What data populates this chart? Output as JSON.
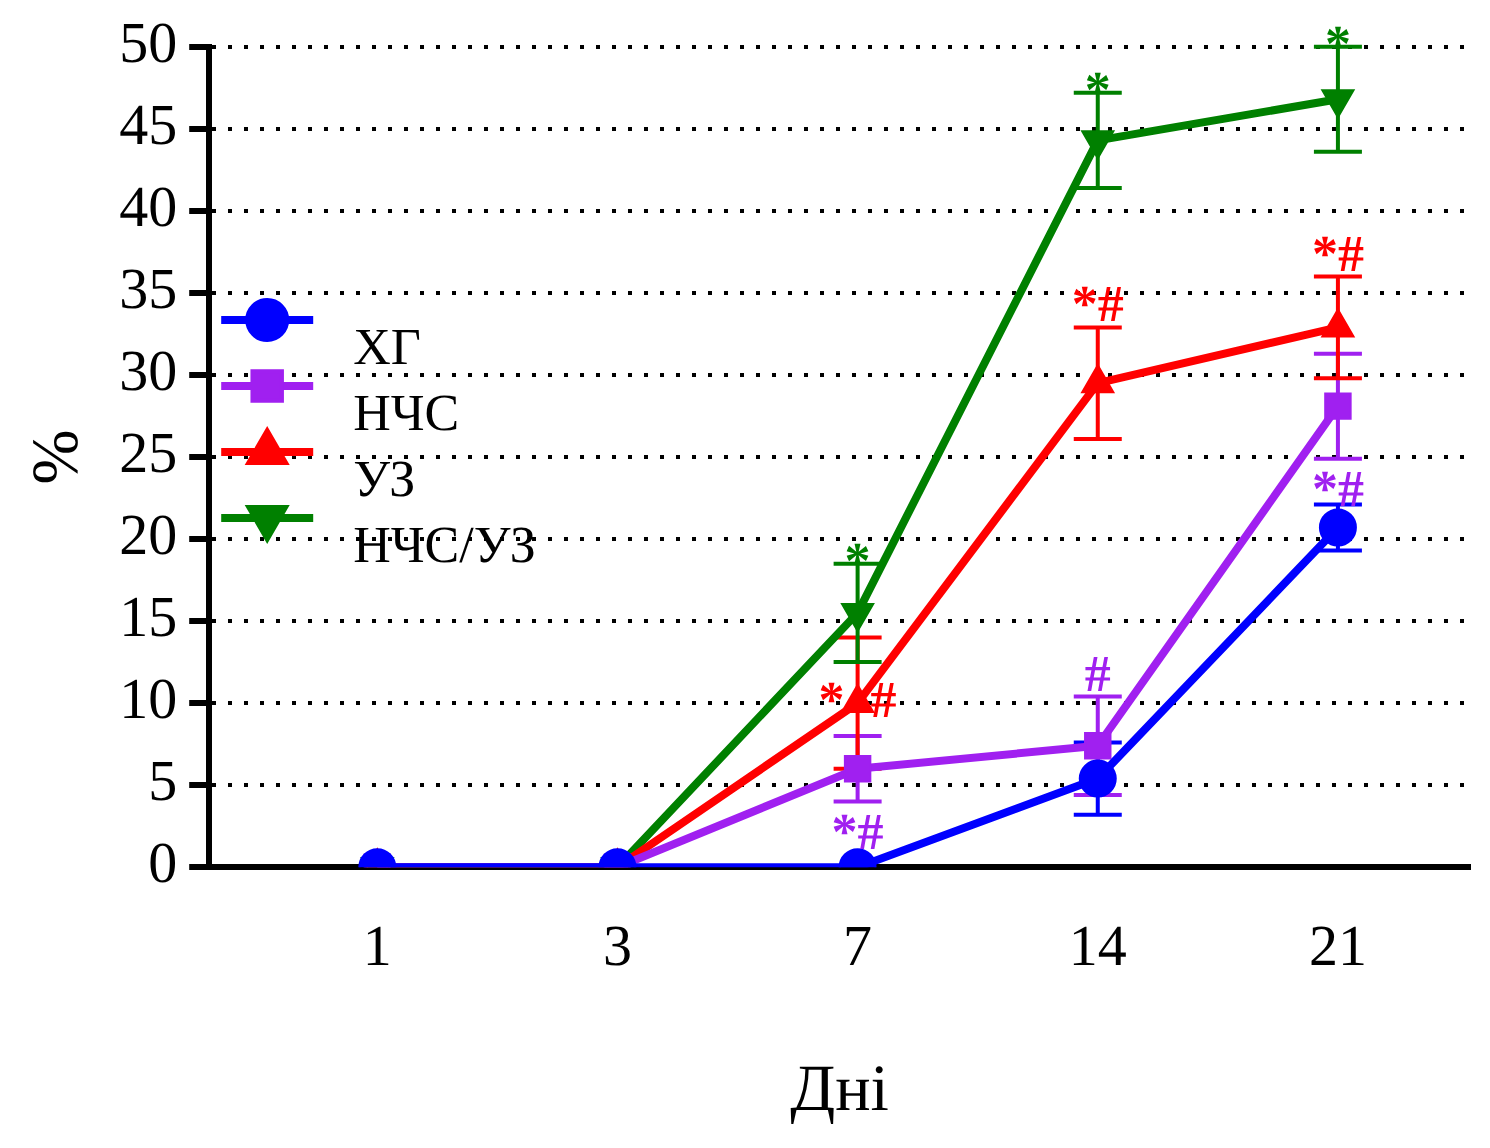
{
  "chart_data": {
    "type": "line",
    "xlabel": "Дні",
    "ylabel": "%",
    "categories": [
      "1",
      "3",
      "7",
      "14",
      "21"
    ],
    "ylim": [
      0,
      50
    ],
    "yticks": [
      0,
      5,
      10,
      15,
      20,
      25,
      30,
      35,
      40,
      45,
      50
    ],
    "grid": "y",
    "legend": "left",
    "line_style": "solid",
    "series": [
      {
        "name": "ХГ",
        "color": "#0000ff",
        "marker": "circle",
        "values": [
          0,
          0,
          0,
          5.4,
          20.7
        ],
        "errors": [
          null,
          null,
          null,
          2.2,
          1.4
        ]
      },
      {
        "name": "НЧС",
        "color": "#a020f0",
        "marker": "square",
        "values": [
          0,
          0,
          6,
          7.4,
          28.1
        ],
        "errors": [
          null,
          null,
          2,
          3,
          3.2
        ]
      },
      {
        "name": "УЗ",
        "color": "#ff0000",
        "marker": "triangle",
        "values": [
          0,
          0,
          10,
          29.5,
          32.9
        ],
        "errors": [
          null,
          null,
          4,
          3.4,
          3.1
        ]
      },
      {
        "name": "НЧС/УЗ",
        "color": "#008000",
        "marker": "triangle-down",
        "values": [
          0,
          0,
          15.5,
          44.3,
          46.8
        ],
        "errors": [
          null,
          null,
          3,
          2.9,
          3.2
        ]
      }
    ],
    "annotations": [
      {
        "text": "*",
        "x": "7",
        "y": 18.5
      },
      {
        "text": "*  #",
        "x": "7",
        "y": 10
      },
      {
        "text": "*#",
        "x": "7",
        "y": 4
      },
      {
        "text": "*",
        "x": "14",
        "y": 47.2
      },
      {
        "text": "*#",
        "x": "14",
        "y": 32.9
      },
      {
        "text": "#",
        "x": "14",
        "y": 10.4
      },
      {
        "text": "*",
        "x": "21",
        "y": 50
      },
      {
        "text": "*#",
        "x": "21",
        "y": 36
      },
      {
        "text": "*#",
        "x": "21",
        "y": 24.9
      }
    ]
  }
}
